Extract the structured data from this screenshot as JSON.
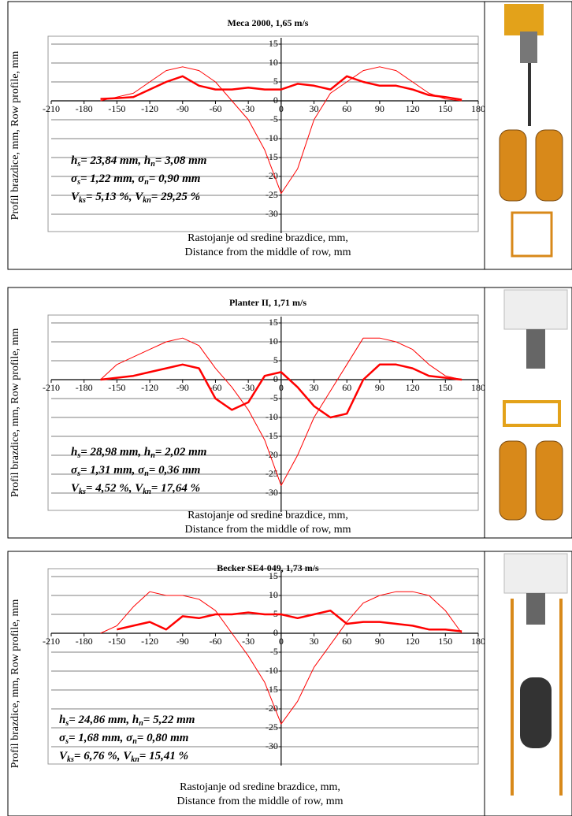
{
  "chart_data": [
    {
      "type": "line",
      "title": "Meca 2000, 1,65 m/s",
      "x": [
        -165,
        -150,
        -135,
        -120,
        -105,
        -90,
        -75,
        -60,
        -45,
        -30,
        -15,
        0,
        15,
        30,
        45,
        60,
        75,
        90,
        105,
        120,
        135,
        150,
        165
      ],
      "series": [
        {
          "color": "#ff0000",
          "values": [
            0,
            1,
            2,
            5,
            8,
            9,
            8,
            5,
            0,
            -5,
            -13,
            -24.5,
            -18,
            -5,
            2,
            5,
            8,
            9,
            8,
            5,
            2,
            0.5,
            0
          ]
        },
        {
          "color": "#ff0000",
          "values": [
            0.5,
            0.7,
            1,
            3,
            5,
            6.5,
            4,
            3,
            3,
            3.5,
            3,
            3,
            4.5,
            4,
            3,
            6.5,
            5,
            4,
            4,
            3,
            1.5,
            1,
            0.3
          ]
        }
      ],
      "xlim": [
        -210,
        180
      ],
      "xticks": [
        -210,
        -180,
        -150,
        -120,
        -90,
        -60,
        -30,
        0,
        30,
        60,
        90,
        120,
        150,
        180
      ],
      "ylim": [
        -35,
        15
      ],
      "yticks": [
        15,
        10,
        5,
        0,
        -5,
        -10,
        -15,
        -20,
        -25,
        -30
      ],
      "grid": true,
      "x_label": [
        "Rastojanje od sredine brazdice, mm,",
        "Distance from the middle of row, mm"
      ],
      "y_label": "Profil brazdice, mm, Row profile, mm",
      "annotation": [
        [
          "h",
          "s",
          "= 23,84 mm, h",
          "n",
          "= 3,08 mm"
        ],
        [
          "σ",
          "s",
          "= 1,22 mm,  σ",
          "n",
          "= 0,90 mm"
        ],
        [
          "V",
          "ks",
          "= 5,13 %, V",
          "kn",
          "= 29,25 %"
        ]
      ]
    },
    {
      "type": "line",
      "title": "Planter II, 1,71 m/s",
      "x": [
        -165,
        -150,
        -135,
        -120,
        -105,
        -90,
        -75,
        -60,
        -45,
        -30,
        -15,
        0,
        15,
        30,
        45,
        60,
        75,
        90,
        105,
        120,
        135,
        150,
        165
      ],
      "series": [
        {
          "color": "#ff0000",
          "values": [
            0,
            4,
            6,
            8,
            10,
            11,
            9,
            3,
            -2,
            -8,
            -16,
            -28,
            -20,
            -10,
            -3,
            4,
            11,
            11,
            10,
            8,
            4,
            1,
            0
          ]
        },
        {
          "color": "#ff0000",
          "values": [
            0,
            0.5,
            1,
            2,
            3,
            4,
            3,
            -5,
            -8,
            -6,
            1,
            2,
            -2,
            -7,
            -10,
            -9,
            0,
            4,
            4,
            3,
            1,
            0.5,
            0
          ]
        }
      ],
      "xlim": [
        -210,
        180
      ],
      "xticks": [
        -210,
        -180,
        -150,
        -120,
        -90,
        -60,
        -30,
        0,
        30,
        60,
        90,
        120,
        150,
        180
      ],
      "ylim": [
        -35,
        15
      ],
      "yticks": [
        15,
        10,
        5,
        0,
        -5,
        -10,
        -15,
        -20,
        -25,
        -30
      ],
      "grid": true,
      "x_label": [
        "Rastojanje od sredine brazdice, mm,",
        "Distance from the middle of row, mm"
      ],
      "y_label": "Profil brazdice, mm, Row profile, mm",
      "annotation": [
        [
          "h",
          "s",
          "= 28,98 mm, h",
          "n",
          "= 2,02 mm"
        ],
        [
          "σ",
          "s",
          "= 1,31 mm,  σ",
          "n",
          "= 0,36 mm"
        ],
        [
          "V",
          "ks",
          "= 4,52 %,  V",
          "kn",
          "= 17,64 %"
        ]
      ]
    },
    {
      "type": "line",
      "title": "Becker SE4-049, 1,73 m/s",
      "x": [
        -165,
        -150,
        -135,
        -120,
        -105,
        -90,
        -75,
        -60,
        -45,
        -30,
        -15,
        0,
        15,
        30,
        45,
        60,
        75,
        90,
        105,
        120,
        135,
        150,
        165
      ],
      "series": [
        {
          "color": "#ff0000",
          "values": [
            0,
            2,
            7,
            11,
            10,
            10,
            9,
            6,
            0,
            -6,
            -13,
            -24,
            -18,
            -9,
            -3,
            3,
            8,
            10,
            11,
            11,
            10,
            6,
            0
          ]
        },
        {
          "color": "#ff0000",
          "values": [
            null,
            1,
            2,
            3,
            1,
            4.5,
            4,
            5,
            5,
            5.5,
            5,
            5,
            4,
            5,
            6,
            2.5,
            3,
            3,
            2.5,
            2,
            1,
            1,
            0.5
          ]
        }
      ],
      "xlim": [
        -210,
        180
      ],
      "xticks": [
        -210,
        -180,
        -150,
        -120,
        -90,
        -60,
        -30,
        0,
        30,
        60,
        90,
        120,
        150,
        180
      ],
      "ylim": [
        -35,
        15
      ],
      "yticks": [
        15,
        10,
        5,
        0,
        -5,
        -10,
        -15,
        -20,
        -25,
        -30
      ],
      "grid": true,
      "x_label": [
        "Rastojanje od sredine brazdice, mm,",
        "Distance from the middle of row, mm"
      ],
      "y_label": "Profil brazdice, mm, Row profile, mm",
      "annotation": [
        [
          "h",
          "s",
          "= 24,86 mm, h",
          "n",
          "= 5,22 mm"
        ],
        [
          "σ",
          "s",
          "= 1,68 mm,  σ",
          "n",
          "= 0,80 mm"
        ],
        [
          "V",
          "ks",
          "= 6,76 %,  V",
          "kn",
          "= 15,41 %"
        ]
      ]
    }
  ]
}
